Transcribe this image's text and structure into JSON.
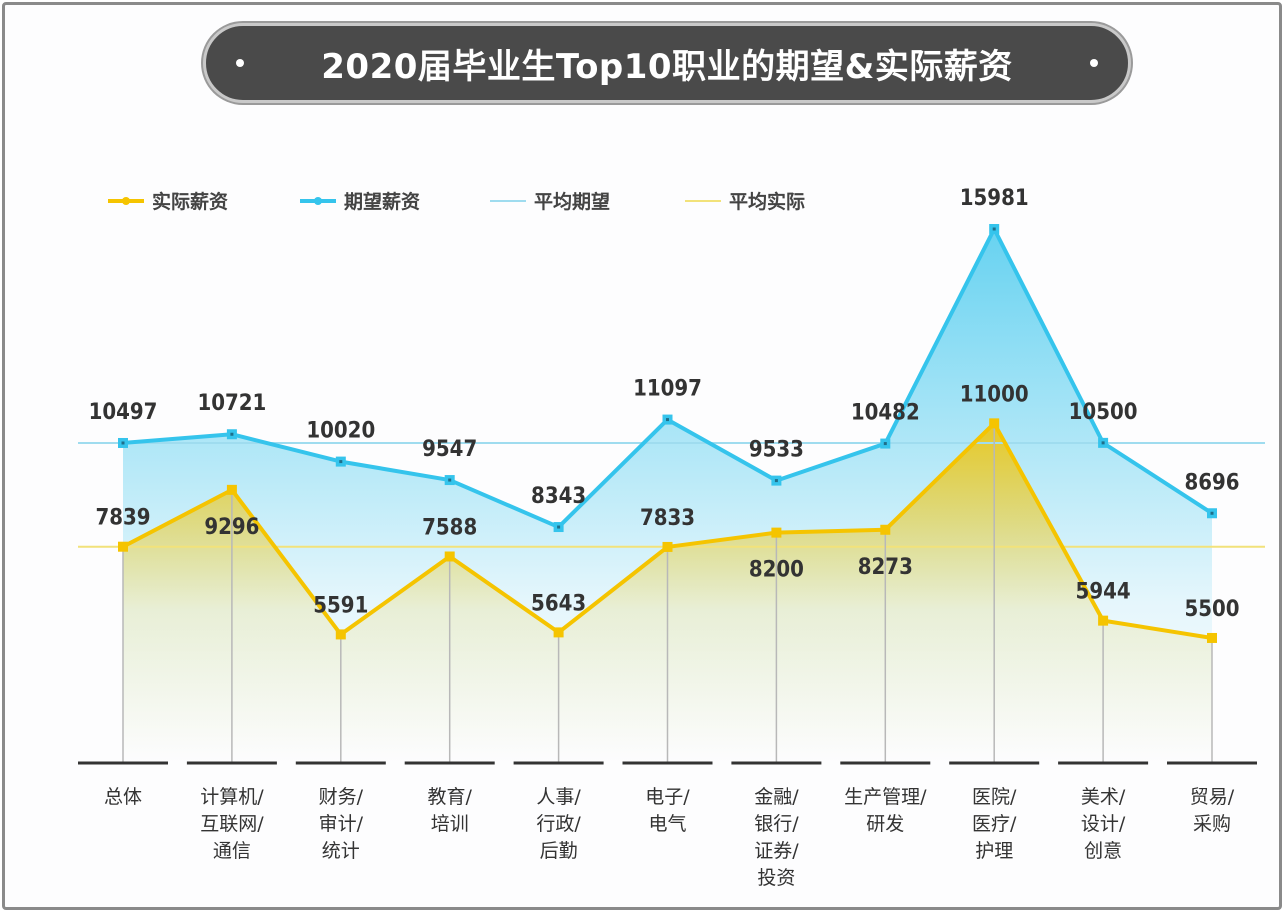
{
  "chart_data": {
    "type": "line",
    "title": "2020届毕业生Top10职业的期望&实际薪资",
    "categories": [
      "总体",
      "计算机/\n互联网/\n通信",
      "财务/\n审计/\n统计",
      "教育/\n培训",
      "人事/\n行政/\n后勤",
      "电子/\n电气",
      "金融/\n银行/\n证券/\n投资",
      "生产管理/\n研发",
      "医院/\n医疗/\n护理",
      "美术/\n设计/\n创意",
      "贸易/\n采购"
    ],
    "series": [
      {
        "name": "实际薪资",
        "color": "#f5c400",
        "values": [
          7839,
          9296,
          5591,
          7588,
          5643,
          7833,
          8200,
          8273,
          11000,
          5944,
          5500
        ]
      },
      {
        "name": "期望薪资",
        "color": "#35c4ec",
        "values": [
          10497,
          10721,
          10020,
          9547,
          8343,
          11097,
          9533,
          10482,
          15981,
          10500,
          8696
        ]
      }
    ],
    "reference_lines": [
      {
        "name": "平均期望",
        "color": "#9fdcef",
        "value": 10497
      },
      {
        "name": "平均实际",
        "color": "#f2e27a",
        "value": 7839
      }
    ],
    "legend": [
      "实际薪资",
      "期望薪资",
      "平均期望",
      "平均实际"
    ],
    "legend_position": "top-left",
    "grid": false,
    "xlabel": "",
    "ylabel": ""
  }
}
